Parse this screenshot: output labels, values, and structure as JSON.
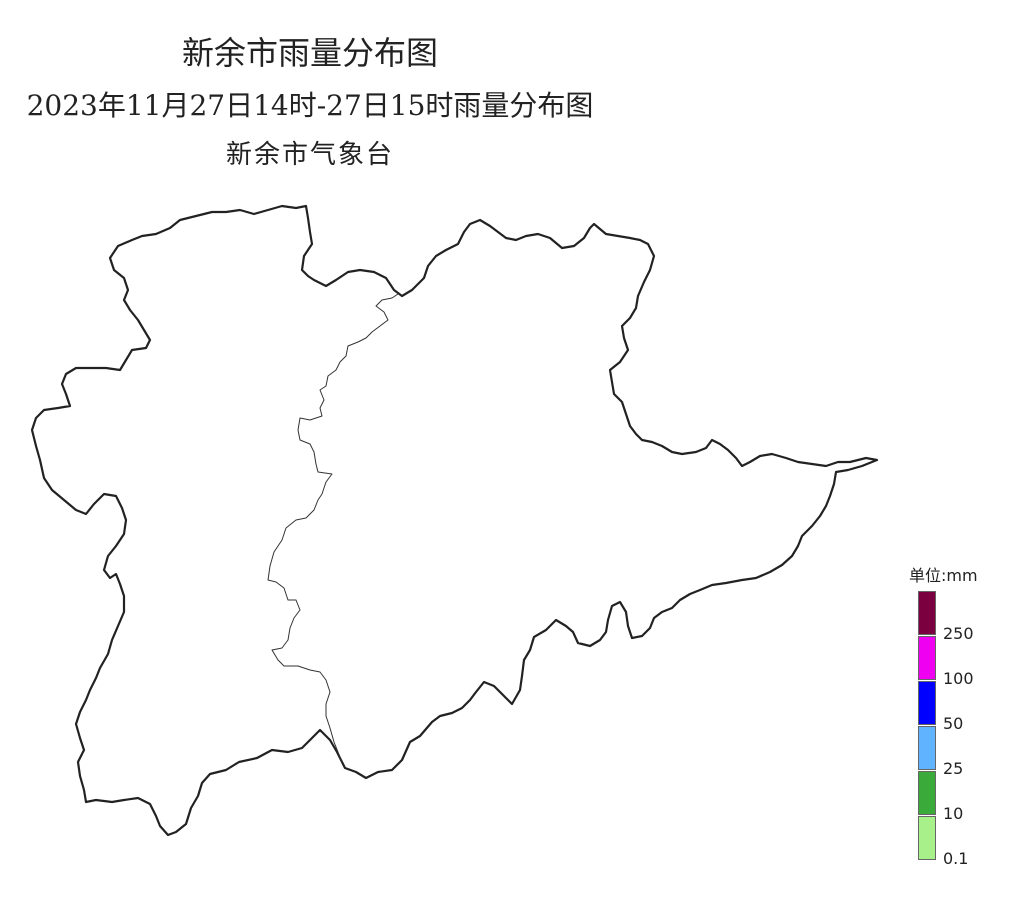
{
  "titles": {
    "main": "新余市雨量分布图",
    "sub": "2023年11月27日14时-27日15时雨量分布图",
    "org": "新余市气象台"
  },
  "legend": {
    "unit": "单位:mm",
    "bins": [
      {
        "color": "#7a0040"
      },
      {
        "color": "#f000f0"
      },
      {
        "color": "#0000ff"
      },
      {
        "color": "#60b4ff"
      },
      {
        "color": "#3aaa3a"
      },
      {
        "color": "#a8f08a"
      }
    ],
    "labels": [
      "250",
      "100",
      "50",
      "25",
      "10",
      "0.1"
    ]
  },
  "map": {
    "region_name_visible": false,
    "fill_color": "#ffffff",
    "outline_color": "#222222"
  }
}
